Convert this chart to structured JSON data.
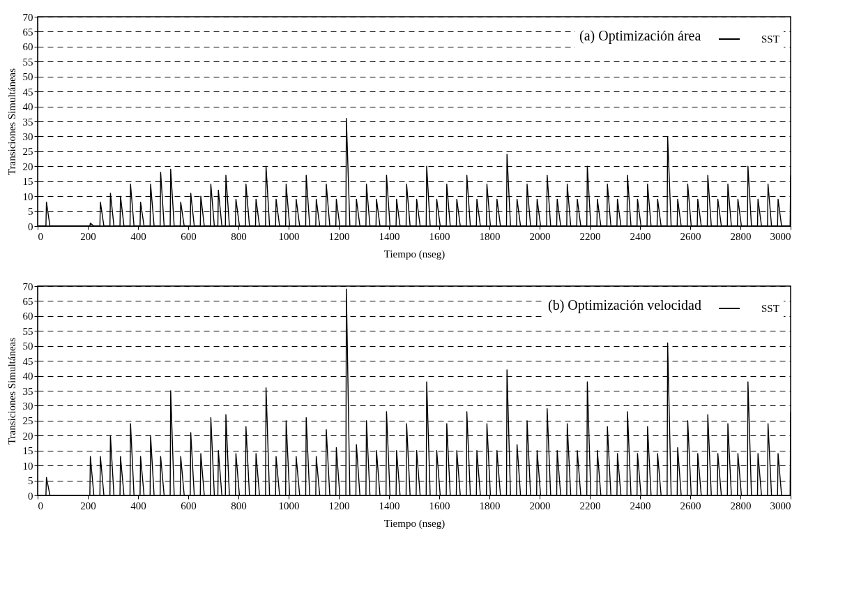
{
  "chart_data": [
    {
      "type": "line",
      "legend_title": "(a) Optimización área",
      "xlabel": "Tiempo (nseg)",
      "ylabel": "Transiciones Simultáneas",
      "xlim": [
        0,
        3000
      ],
      "ylim": [
        0,
        70
      ],
      "xticks": [
        0,
        200,
        400,
        600,
        800,
        1000,
        1200,
        1400,
        1600,
        1800,
        2000,
        2200,
        2400,
        2600,
        2800,
        3000
      ],
      "yticks": [
        0,
        5,
        10,
        15,
        20,
        25,
        30,
        35,
        40,
        45,
        50,
        55,
        60,
        65,
        70
      ],
      "grid": "y",
      "legend": "top right",
      "line_style": "solid",
      "x": [
        0,
        33,
        35,
        49,
        208,
        210,
        224,
        248,
        250,
        264,
        288,
        290,
        304,
        328,
        330,
        344,
        368,
        370,
        384,
        408,
        410,
        424,
        448,
        450,
        464,
        488,
        490,
        504,
        528,
        530,
        544,
        568,
        570,
        584,
        608,
        610,
        624,
        648,
        650,
        664,
        688,
        690,
        704,
        718,
        720,
        734,
        748,
        750,
        764,
        788,
        790,
        804,
        828,
        830,
        844,
        868,
        870,
        884,
        908,
        910,
        924,
        948,
        950,
        964,
        988,
        990,
        1004,
        1028,
        1030,
        1044,
        1068,
        1070,
        1084,
        1108,
        1110,
        1124,
        1148,
        1150,
        1164,
        1188,
        1190,
        1204,
        1228,
        1230,
        1244,
        1268,
        1270,
        1284,
        1308,
        1310,
        1324,
        1348,
        1350,
        1364,
        1388,
        1390,
        1404,
        1428,
        1430,
        1444,
        1468,
        1470,
        1484,
        1508,
        1510,
        1524,
        1548,
        1550,
        1564,
        1588,
        1590,
        1604,
        1628,
        1630,
        1644,
        1668,
        1670,
        1684,
        1708,
        1710,
        1724,
        1748,
        1750,
        1764,
        1788,
        1790,
        1804,
        1828,
        1830,
        1844,
        1868,
        1870,
        1884,
        1908,
        1910,
        1924,
        1948,
        1950,
        1964,
        1988,
        1990,
        2004,
        2028,
        2030,
        2044,
        2068,
        2070,
        2084,
        2108,
        2110,
        2124,
        2148,
        2150,
        2164,
        2188,
        2190,
        2204,
        2228,
        2230,
        2244,
        2268,
        2270,
        2284,
        2308,
        2310,
        2324,
        2348,
        2350,
        2364,
        2388,
        2390,
        2404,
        2428,
        2430,
        2444,
        2468,
        2470,
        2484,
        2508,
        2510,
        2524,
        2548,
        2550,
        2564,
        2588,
        2590,
        2604,
        2628,
        2630,
        2644,
        2668,
        2670,
        2684,
        2708,
        2710,
        2724,
        2748,
        2750,
        2764,
        2788,
        2790,
        2804,
        2828,
        2830,
        2844,
        2868,
        2870,
        2884,
        2908,
        2910,
        2924,
        2948,
        2950,
        2964,
        2998,
        3000
      ],
      "series": [
        {
          "name": "SST",
          "color": "#000000",
          "values": [
            0,
            0,
            8,
            0,
            0,
            1,
            0,
            0,
            8,
            0,
            0,
            11,
            0,
            0,
            10,
            0,
            0,
            14,
            0,
            0,
            8,
            0,
            0,
            14,
            0,
            0,
            18,
            0,
            0,
            19,
            0,
            0,
            8,
            0,
            0,
            11,
            0,
            0,
            10,
            0,
            0,
            14,
            0,
            0,
            12,
            0,
            0,
            17,
            0,
            0,
            9,
            0,
            0,
            14,
            0,
            0,
            9,
            0,
            0,
            20,
            0,
            0,
            9,
            0,
            0,
            14,
            0,
            0,
            9,
            0,
            0,
            17,
            0,
            0,
            9,
            0,
            0,
            14,
            0,
            0,
            9,
            0,
            0,
            36,
            0,
            0,
            9,
            0,
            0,
            14,
            0,
            0,
            9,
            0,
            0,
            17,
            0,
            0,
            9,
            0,
            0,
            14,
            0,
            0,
            9,
            0,
            0,
            20,
            0,
            0,
            9,
            0,
            0,
            14,
            0,
            0,
            9,
            0,
            0,
            17,
            0,
            0,
            9,
            0,
            0,
            14,
            0,
            0,
            9,
            0,
            0,
            24,
            0,
            0,
            9,
            0,
            0,
            14,
            0,
            0,
            9,
            0,
            0,
            17,
            0,
            0,
            9,
            0,
            0,
            14,
            0,
            0,
            9,
            0,
            0,
            20,
            0,
            0,
            9,
            0,
            0,
            14,
            0,
            0,
            9,
            0,
            0,
            17,
            0,
            0,
            9,
            0,
            0,
            14,
            0,
            0,
            9,
            0,
            0,
            30,
            0,
            0,
            9,
            0,
            0,
            14,
            0,
            0,
            9,
            0,
            0,
            17,
            0,
            0,
            9,
            0,
            0,
            14,
            0,
            0,
            9,
            0,
            0,
            20,
            0,
            0,
            9,
            0,
            0,
            14,
            0,
            0,
            9,
            0,
            0,
            17
          ]
        }
      ]
    },
    {
      "type": "line",
      "legend_title": "(b) Optimización velocidad",
      "xlabel": "Tiempo (nseg)",
      "ylabel": "Transiciones Simultáneas",
      "xlim": [
        0,
        3000
      ],
      "ylim": [
        0,
        70
      ],
      "xticks": [
        0,
        200,
        400,
        600,
        800,
        1000,
        1200,
        1400,
        1600,
        1800,
        2000,
        2200,
        2400,
        2600,
        2800,
        3000
      ],
      "yticks": [
        0,
        5,
        10,
        15,
        20,
        25,
        30,
        35,
        40,
        45,
        50,
        55,
        60,
        65,
        70
      ],
      "grid": "y",
      "legend": "top right",
      "line_style": "solid",
      "x": [
        0,
        33,
        35,
        49,
        208,
        210,
        224,
        248,
        250,
        264,
        288,
        290,
        304,
        328,
        330,
        344,
        368,
        370,
        384,
        408,
        410,
        424,
        448,
        450,
        464,
        488,
        490,
        504,
        528,
        530,
        544,
        568,
        570,
        584,
        608,
        610,
        624,
        648,
        650,
        664,
        688,
        690,
        704,
        718,
        720,
        734,
        748,
        750,
        764,
        788,
        790,
        804,
        828,
        830,
        844,
        868,
        870,
        884,
        908,
        910,
        924,
        948,
        950,
        964,
        988,
        990,
        1004,
        1028,
        1030,
        1044,
        1068,
        1070,
        1084,
        1108,
        1110,
        1124,
        1148,
        1150,
        1164,
        1188,
        1190,
        1204,
        1228,
        1230,
        1244,
        1268,
        1270,
        1284,
        1308,
        1310,
        1324,
        1348,
        1350,
        1364,
        1388,
        1390,
        1404,
        1428,
        1430,
        1444,
        1468,
        1470,
        1484,
        1508,
        1510,
        1524,
        1548,
        1550,
        1564,
        1588,
        1590,
        1604,
        1628,
        1630,
        1644,
        1668,
        1670,
        1684,
        1708,
        1710,
        1724,
        1748,
        1750,
        1764,
        1788,
        1790,
        1804,
        1828,
        1830,
        1844,
        1868,
        1870,
        1884,
        1908,
        1910,
        1924,
        1948,
        1950,
        1964,
        1988,
        1990,
        2004,
        2028,
        2030,
        2044,
        2068,
        2070,
        2084,
        2108,
        2110,
        2124,
        2148,
        2150,
        2164,
        2188,
        2190,
        2204,
        2228,
        2230,
        2244,
        2268,
        2270,
        2284,
        2308,
        2310,
        2324,
        2348,
        2350,
        2364,
        2388,
        2390,
        2404,
        2428,
        2430,
        2444,
        2468,
        2470,
        2484,
        2508,
        2510,
        2524,
        2548,
        2550,
        2564,
        2588,
        2590,
        2604,
        2628,
        2630,
        2644,
        2668,
        2670,
        2684,
        2708,
        2710,
        2724,
        2748,
        2750,
        2764,
        2788,
        2790,
        2804,
        2828,
        2830,
        2844,
        2868,
        2870,
        2884,
        2908,
        2910,
        2924,
        2948,
        2950,
        2964,
        2998,
        3000
      ],
      "series": [
        {
          "name": "SST",
          "color": "#000000",
          "values": [
            0,
            0,
            6,
            0,
            0,
            13,
            0,
            0,
            13,
            0,
            0,
            20,
            0,
            0,
            13,
            0,
            0,
            24,
            0,
            0,
            13,
            0,
            0,
            20,
            0,
            0,
            13,
            0,
            0,
            35,
            0,
            0,
            13,
            0,
            0,
            21,
            0,
            0,
            14,
            0,
            0,
            26,
            0,
            0,
            15,
            0,
            0,
            27,
            0,
            0,
            14,
            0,
            0,
            23,
            0,
            0,
            14,
            0,
            0,
            36,
            0,
            0,
            13,
            0,
            0,
            25,
            0,
            0,
            13,
            0,
            0,
            26,
            0,
            0,
            13,
            0,
            0,
            22,
            0,
            0,
            16,
            0,
            0,
            69,
            0,
            0,
            17,
            0,
            0,
            25,
            0,
            0,
            15,
            0,
            0,
            28,
            0,
            0,
            15,
            0,
            0,
            24,
            0,
            0,
            15,
            0,
            0,
            38,
            0,
            0,
            15,
            0,
            0,
            24,
            0,
            0,
            15,
            0,
            0,
            28,
            0,
            0,
            15,
            0,
            0,
            24,
            0,
            0,
            15,
            0,
            0,
            42,
            0,
            0,
            17,
            0,
            0,
            25,
            0,
            0,
            15,
            0,
            0,
            29,
            0,
            0,
            15,
            0,
            0,
            24,
            0,
            0,
            15,
            0,
            0,
            38,
            0,
            0,
            15,
            0,
            0,
            23,
            0,
            0,
            14,
            0,
            0,
            28,
            0,
            0,
            14,
            0,
            0,
            23,
            0,
            0,
            14,
            0,
            0,
            51,
            0,
            0,
            16,
            0,
            0,
            25,
            0,
            0,
            14,
            0,
            0,
            27,
            0,
            0,
            14,
            0,
            0,
            24,
            0,
            0,
            14,
            0,
            0,
            38,
            0,
            0,
            14,
            0,
            0,
            24,
            0,
            0,
            14,
            0,
            0,
            28
          ]
        }
      ]
    }
  ]
}
